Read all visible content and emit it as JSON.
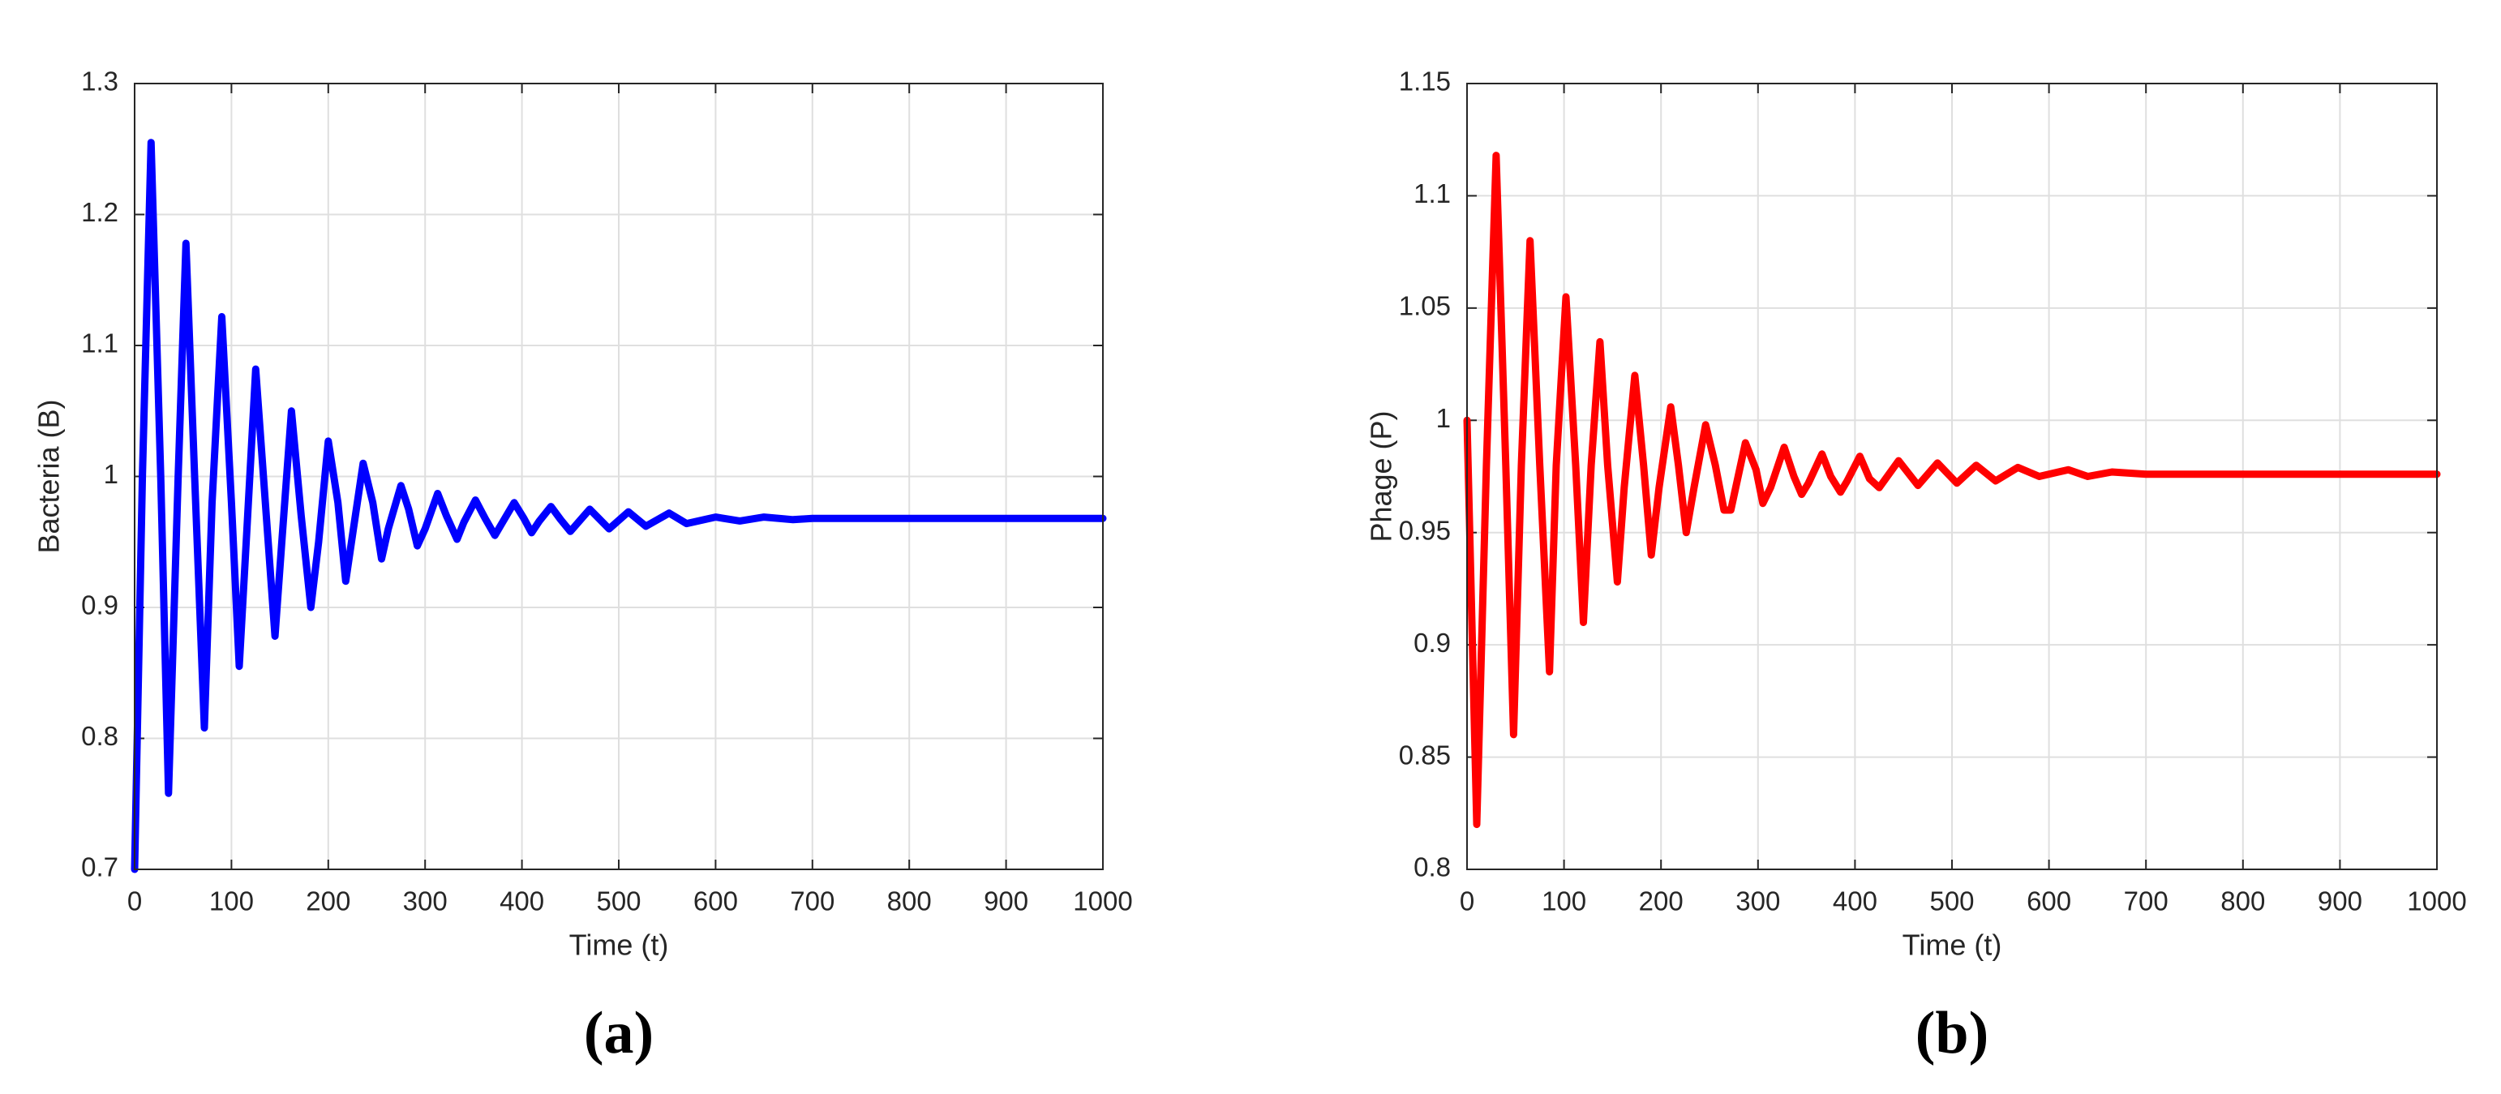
{
  "chart_data": [
    {
      "type": "line",
      "panel_label": "(a)",
      "xlabel": "Time (t)",
      "ylabel": "Bacteria (B)",
      "color": "#0000ff",
      "grid": true,
      "xlim": [
        0,
        1000
      ],
      "ylim": [
        0.7,
        1.3
      ],
      "xticks": [
        0,
        100,
        200,
        300,
        400,
        500,
        600,
        700,
        800,
        900,
        1000
      ],
      "yticks": [
        0.7,
        0.8,
        0.9,
        1,
        1.1,
        1.2,
        1.3
      ],
      "x": [
        0,
        8,
        17,
        27,
        35,
        45,
        53,
        62,
        72,
        80,
        90,
        100,
        108,
        116,
        125,
        135,
        145,
        152,
        162,
        172,
        182,
        190,
        200,
        210,
        218,
        226,
        236,
        246,
        255,
        262,
        275,
        283,
        292,
        300,
        313,
        322,
        333,
        340,
        352,
        362,
        372,
        380,
        392,
        402,
        410,
        418,
        430,
        440,
        450,
        470,
        490,
        510,
        528,
        552,
        570,
        600,
        625,
        650,
        680,
        700,
        1000
      ],
      "values": [
        0.7,
        1.0,
        1.255,
        1.0,
        0.758,
        1.0,
        1.178,
        1.0,
        0.808,
        0.98,
        1.122,
        0.98,
        0.855,
        0.96,
        1.082,
        0.98,
        0.878,
        0.95,
        1.05,
        0.97,
        0.9,
        0.95,
        1.027,
        0.98,
        0.92,
        0.96,
        1.01,
        0.98,
        0.937,
        0.96,
        0.993,
        0.975,
        0.947,
        0.96,
        0.987,
        0.97,
        0.952,
        0.965,
        0.982,
        0.968,
        0.955,
        0.965,
        0.98,
        0.968,
        0.957,
        0.966,
        0.977,
        0.967,
        0.958,
        0.975,
        0.96,
        0.973,
        0.962,
        0.972,
        0.964,
        0.969,
        0.966,
        0.969,
        0.967,
        0.968,
        0.968
      ]
    },
    {
      "type": "line",
      "panel_label": "(b)",
      "xlabel": "Time (t)",
      "ylabel": "Phage (P)",
      "color": "#ff0000",
      "grid": true,
      "xlim": [
        0,
        1000
      ],
      "ylim": [
        0.8,
        1.15
      ],
      "xticks": [
        0,
        100,
        200,
        300,
        400,
        500,
        600,
        700,
        800,
        900,
        1000
      ],
      "yticks": [
        0.8,
        0.85,
        0.9,
        0.95,
        1,
        1.05,
        1.1,
        1.15
      ],
      "x": [
        0,
        10,
        20,
        30,
        40,
        48,
        56,
        65,
        75,
        85,
        92,
        102,
        112,
        120,
        128,
        137,
        145,
        155,
        162,
        173,
        182,
        190,
        198,
        210,
        218,
        226,
        234,
        246,
        256,
        265,
        272,
        287,
        298,
        305,
        313,
        327,
        337,
        345,
        352,
        366,
        375,
        385,
        392,
        405,
        415,
        425,
        445,
        465,
        485,
        505,
        525,
        545,
        568,
        590,
        620,
        640,
        665,
        700,
        1000
      ],
      "values": [
        1.0,
        0.82,
        0.98,
        1.118,
        0.98,
        0.86,
        0.98,
        1.08,
        0.98,
        0.888,
        0.98,
        1.055,
        0.98,
        0.91,
        0.98,
        1.035,
        0.98,
        0.928,
        0.97,
        1.02,
        0.98,
        0.94,
        0.97,
        1.006,
        0.98,
        0.95,
        0.97,
        0.998,
        0.98,
        0.96,
        0.96,
        0.99,
        0.978,
        0.963,
        0.97,
        0.988,
        0.975,
        0.967,
        0.972,
        0.985,
        0.975,
        0.968,
        0.973,
        0.984,
        0.974,
        0.97,
        0.982,
        0.971,
        0.981,
        0.972,
        0.98,
        0.973,
        0.979,
        0.975,
        0.978,
        0.975,
        0.977,
        0.976,
        0.976
      ]
    }
  ]
}
